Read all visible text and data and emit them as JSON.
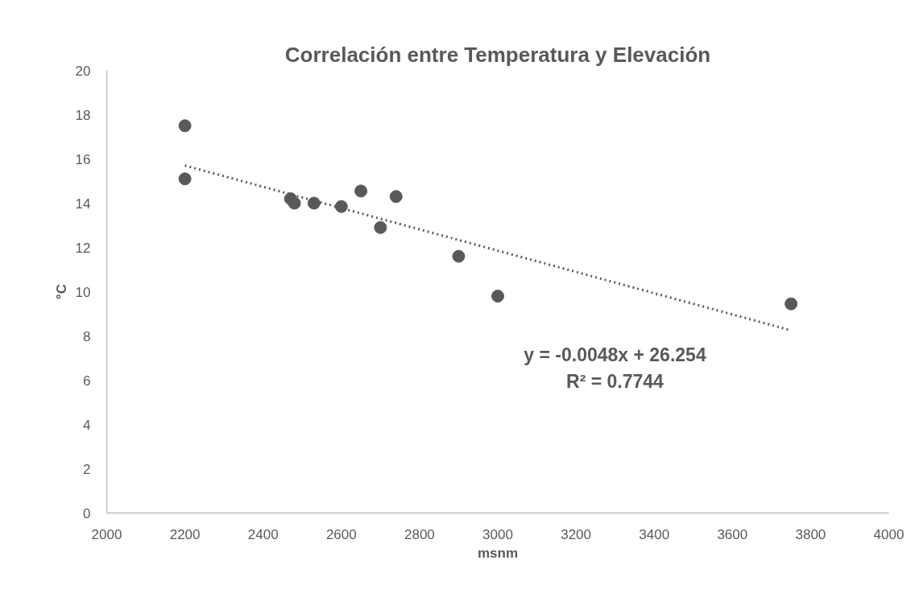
{
  "chart_data": {
    "type": "scatter",
    "title": "Correlación entre Temperatura y Elevación",
    "xlabel": "msnm",
    "ylabel": "°C",
    "x": [
      2200,
      2200,
      2470,
      2480,
      2530,
      2600,
      2650,
      2700,
      2740,
      2900,
      3000,
      3750
    ],
    "series": [
      {
        "color": "#595959",
        "values": [
          17.5,
          15.1,
          14.2,
          14.0,
          14.0,
          13.85,
          14.55,
          12.9,
          14.3,
          11.6,
          9.8,
          9.45
        ],
        "marker": "circle"
      },
      {
        "type": "line",
        "color": "#595959",
        "x": [
          2200,
          3750
        ],
        "values": [
          15.7,
          8.25
        ],
        "line_style": "dotted",
        "marker": "none"
      }
    ],
    "xlim": [
      2000,
      4000
    ],
    "xticks": [
      2000,
      2200,
      2400,
      2600,
      2800,
      3000,
      3200,
      3400,
      3600,
      3800,
      4000
    ],
    "ylim": [
      0,
      20
    ],
    "yticks": [
      0,
      2,
      4,
      6,
      8,
      10,
      12,
      14,
      16,
      18,
      20
    ],
    "grid": false,
    "annotations": [
      "y = -0.0048x + 26.254\nR² = 0.7744"
    ]
  }
}
